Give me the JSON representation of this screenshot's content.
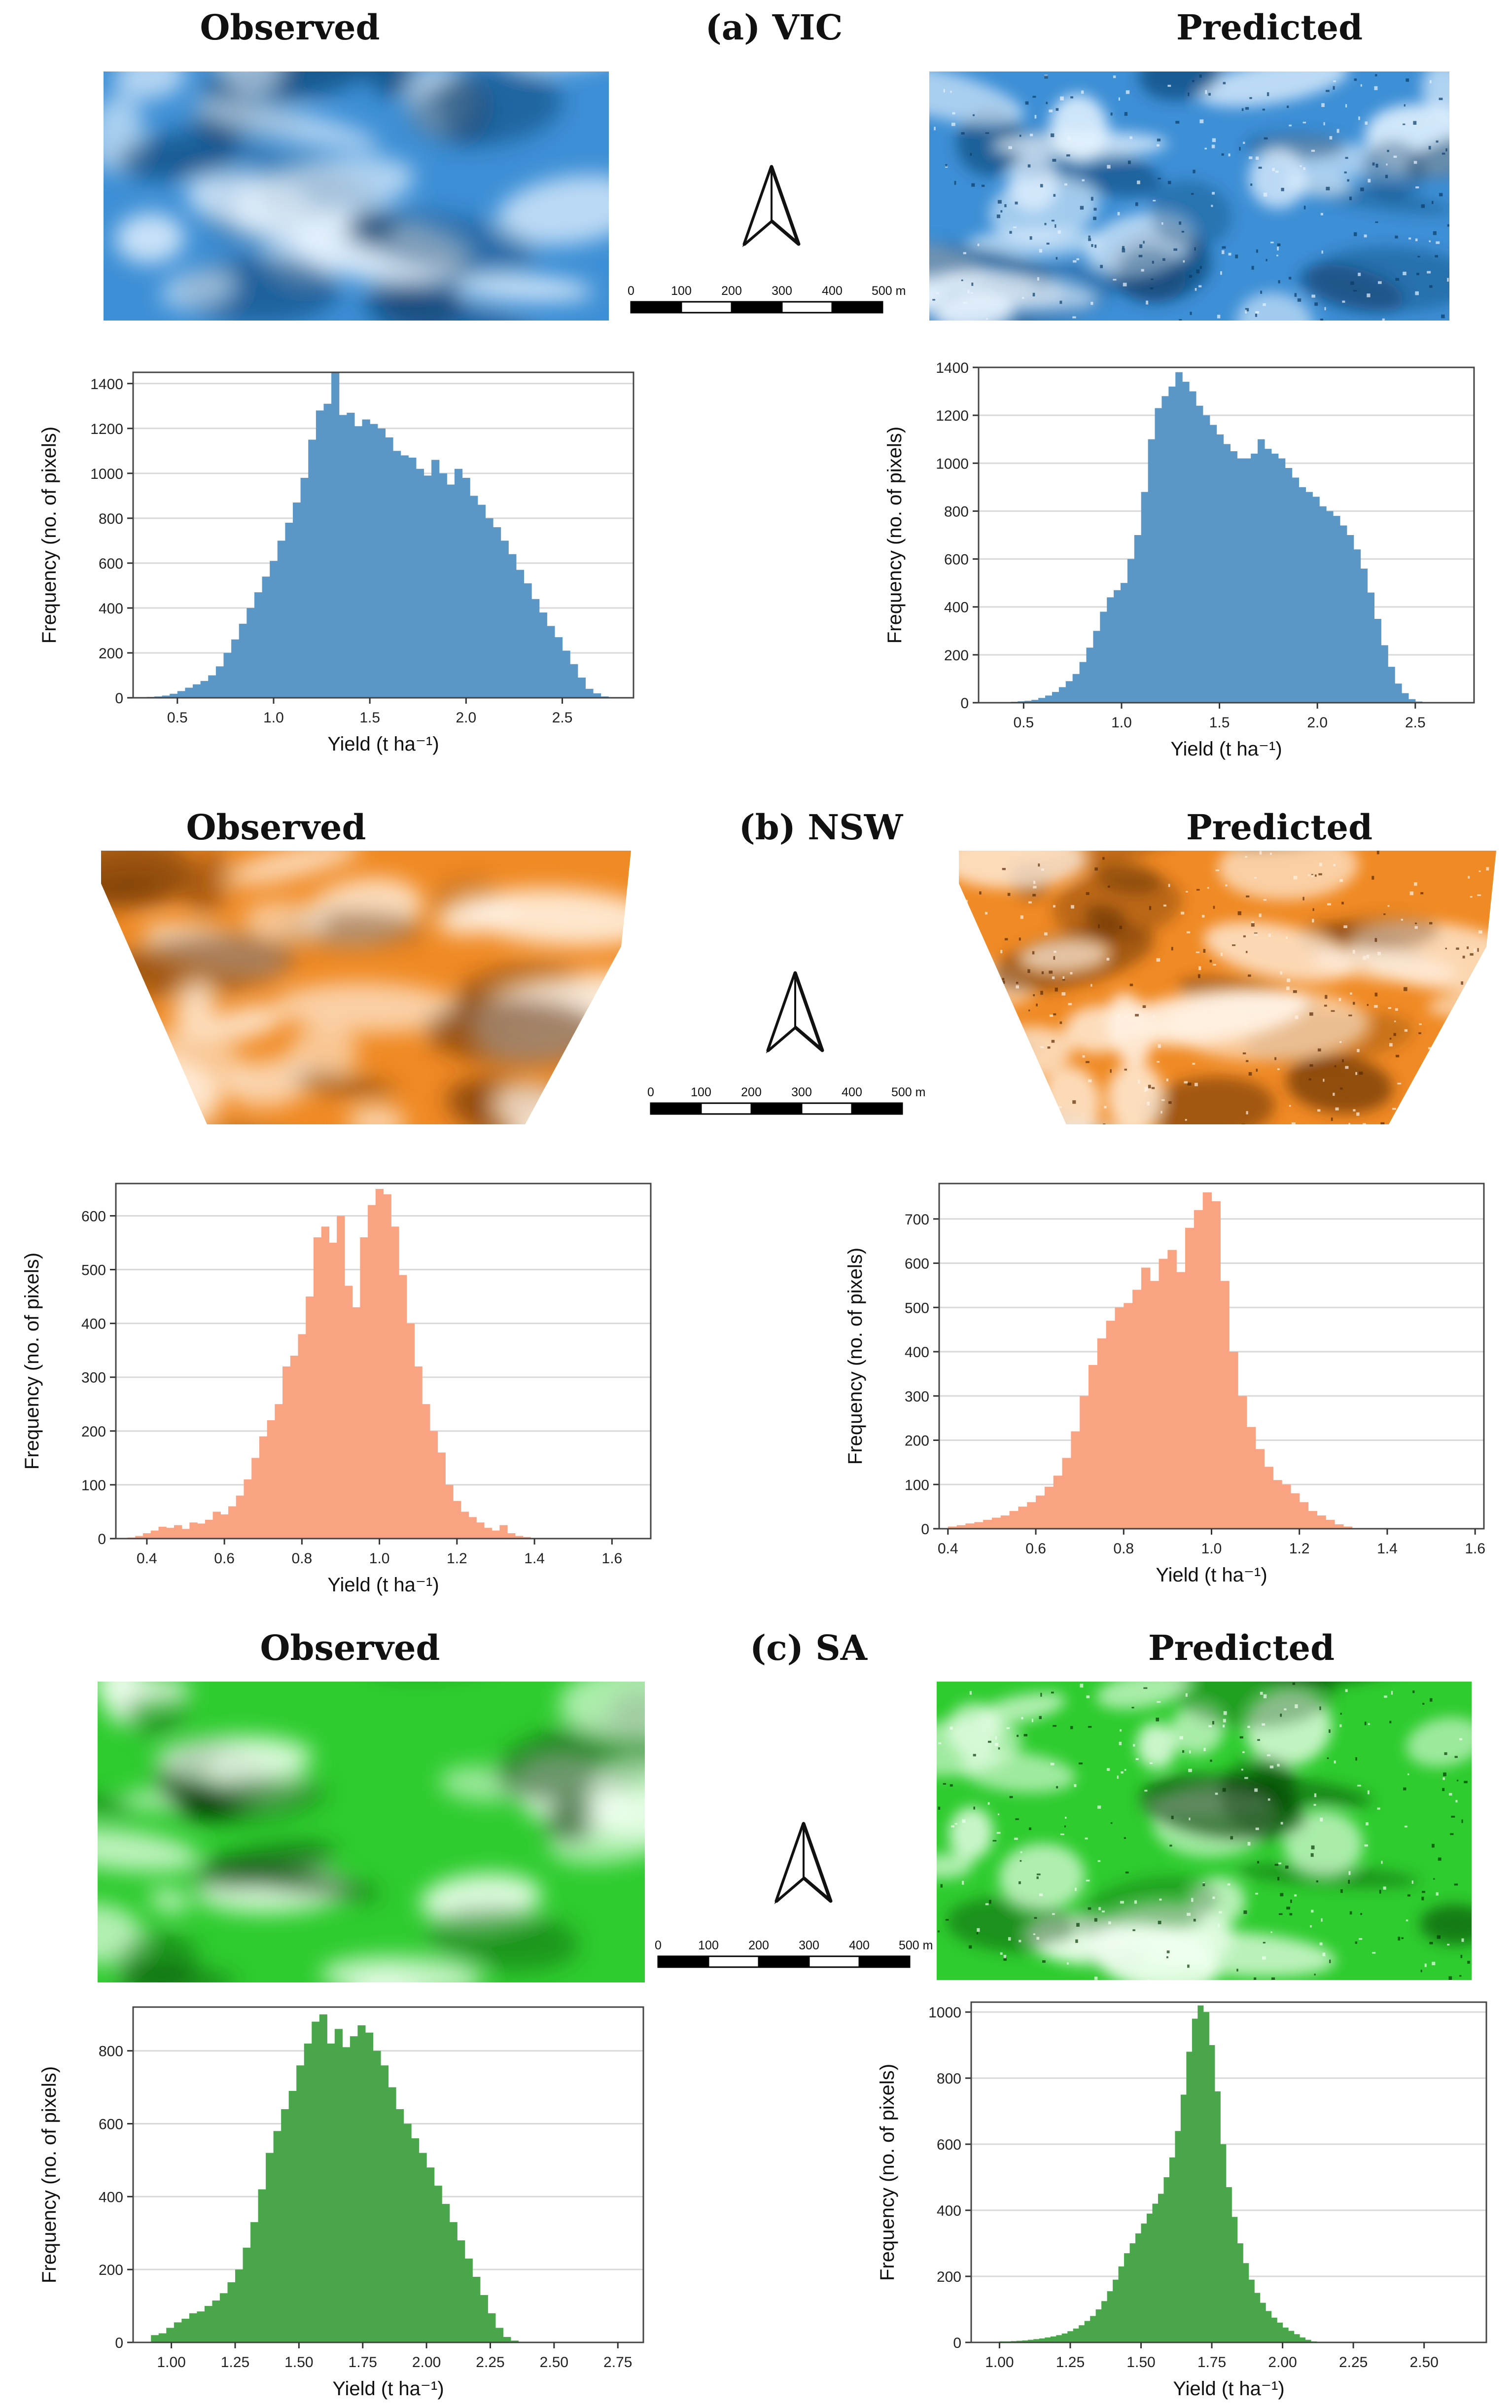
{
  "panels": [
    {
      "id": "vic",
      "label": "(a) VIC",
      "observed_title": "Observed",
      "predicted_title": "Predicted",
      "colors": {
        "map_base": "#3d8fd6",
        "map_light": "#e8f4ff",
        "map_dark": "#0a3a66",
        "bar": "#5b97c6"
      },
      "scale": {
        "ticks": [
          "0",
          "100",
          "200",
          "300",
          "400",
          "500 m"
        ]
      }
    },
    {
      "id": "nsw",
      "label": "(b) NSW",
      "observed_title": "Observed",
      "predicted_title": "Predicted",
      "colors": {
        "map_base": "#f08a24",
        "map_light": "#fff1e2",
        "map_dark": "#5a2a05",
        "bar": "#f9a382"
      },
      "scale": {
        "ticks": [
          "0",
          "100",
          "200",
          "300",
          "400",
          "500 m"
        ]
      }
    },
    {
      "id": "sa",
      "label": "(c) SA",
      "observed_title": "Observed",
      "predicted_title": "Predicted",
      "colors": {
        "map_base": "#2ecc2e",
        "map_light": "#f0fff0",
        "map_dark": "#063806",
        "bar": "#4aa64a"
      },
      "scale": {
        "ticks": [
          "0",
          "100",
          "200",
          "300",
          "400",
          "500 m"
        ]
      }
    }
  ],
  "chart_data": [
    {
      "type": "bar",
      "panel": "(a) VIC",
      "name": "Observed",
      "xlabel": "Yield (t ha⁻¹)",
      "ylabel": "Frequency (no. of pixels)",
      "xlim": [
        0.27,
        2.87
      ],
      "ylim": [
        0,
        1450
      ],
      "xticks": [
        0.5,
        1.0,
        1.5,
        2.0,
        2.5
      ],
      "xtick_labels": [
        "0.5",
        "1.0",
        "1.5",
        "2.0",
        "2.5"
      ],
      "yticks": [
        0,
        200,
        400,
        600,
        800,
        1000,
        1200,
        1400
      ],
      "ytick_labels": [
        "0",
        "200",
        "400",
        "600",
        "800",
        "1000",
        "1200",
        "1400"
      ],
      "bin_start": 0.3,
      "bin_width": 0.04,
      "values": [
        3,
        4,
        6,
        10,
        18,
        30,
        45,
        60,
        75,
        100,
        140,
        200,
        260,
        330,
        400,
        470,
        540,
        610,
        700,
        780,
        870,
        980,
        1150,
        1280,
        1310,
        1450,
        1260,
        1270,
        1210,
        1240,
        1220,
        1200,
        1160,
        1100,
        1080,
        1070,
        1020,
        990,
        1060,
        1000,
        950,
        1020,
        980,
        900,
        860,
        800,
        760,
        700,
        640,
        570,
        510,
        440,
        380,
        320,
        270,
        210,
        150,
        90,
        40,
        20,
        6
      ]
    },
    {
      "type": "bar",
      "panel": "(a) VIC",
      "name": "Predicted",
      "xlabel": "Yield (t ha⁻¹)",
      "ylabel": "Frequency (no. of pixels)",
      "xlim": [
        0.27,
        2.8
      ],
      "ylim": [
        0,
        1400
      ],
      "xticks": [
        0.5,
        1.0,
        1.5,
        2.0,
        2.5
      ],
      "xtick_labels": [
        "0.5",
        "1.0",
        "1.5",
        "2.0",
        "2.5"
      ],
      "yticks": [
        0,
        200,
        400,
        600,
        800,
        1000,
        1200,
        1400
      ],
      "ytick_labels": [
        "0",
        "200",
        "400",
        "600",
        "800",
        "1000",
        "1200",
        "1400"
      ],
      "bin_start": 0.4,
      "bin_width": 0.035,
      "values": [
        2,
        4,
        6,
        8,
        12,
        20,
        30,
        45,
        65,
        90,
        120,
        170,
        230,
        300,
        380,
        440,
        470,
        500,
        600,
        700,
        880,
        1100,
        1230,
        1280,
        1320,
        1380,
        1340,
        1300,
        1240,
        1200,
        1160,
        1120,
        1080,
        1050,
        1020,
        1020,
        1040,
        1100,
        1060,
        1040,
        1020,
        980,
        940,
        900,
        880,
        860,
        820,
        800,
        780,
        740,
        700,
        640,
        560,
        460,
        350,
        240,
        150,
        80,
        40,
        15,
        5,
        2
      ]
    },
    {
      "type": "bar",
      "panel": "(b) NSW",
      "name": "Observed",
      "xlabel": "Yield (t ha⁻¹)",
      "ylabel": "Frequency (no. of pixels)",
      "xlim": [
        0.32,
        1.7
      ],
      "ylim": [
        0,
        660
      ],
      "xticks": [
        0.4,
        0.6,
        0.8,
        1.0,
        1.2,
        1.4,
        1.6
      ],
      "xtick_labels": [
        "0.4",
        "0.6",
        "0.8",
        "1.0",
        "1.2",
        "1.4",
        "1.6"
      ],
      "yticks": [
        0,
        100,
        200,
        300,
        400,
        500,
        600
      ],
      "ytick_labels": [
        "0",
        "100",
        "200",
        "300",
        "400",
        "500",
        "600"
      ],
      "bin_start": 0.35,
      "bin_width": 0.02,
      "values": [
        2,
        5,
        10,
        15,
        22,
        20,
        25,
        18,
        30,
        28,
        35,
        50,
        45,
        60,
        80,
        110,
        150,
        190,
        220,
        250,
        320,
        340,
        380,
        450,
        560,
        580,
        550,
        600,
        470,
        430,
        560,
        620,
        650,
        640,
        580,
        490,
        400,
        320,
        250,
        200,
        160,
        100,
        70,
        50,
        40,
        30,
        20,
        15,
        25,
        10,
        5,
        3
      ]
    },
    {
      "type": "bar",
      "panel": "(b) NSW",
      "name": "Predicted",
      "xlabel": "Yield (t ha⁻¹)",
      "ylabel": "Frequency (no. of pixels)",
      "xlim": [
        0.38,
        1.62
      ],
      "ylim": [
        0,
        780
      ],
      "xticks": [
        0.4,
        0.6,
        0.8,
        1.0,
        1.2,
        1.4,
        1.6
      ],
      "xtick_labels": [
        "0.4",
        "0.6",
        "0.8",
        "1.0",
        "1.2",
        "1.4",
        "1.6"
      ],
      "yticks": [
        0,
        100,
        200,
        300,
        400,
        500,
        600,
        700
      ],
      "ytick_labels": [
        "0",
        "100",
        "200",
        "300",
        "400",
        "500",
        "600",
        "700"
      ],
      "bin_start": 0.4,
      "bin_width": 0.02,
      "values": [
        5,
        8,
        12,
        15,
        20,
        25,
        30,
        40,
        50,
        60,
        75,
        95,
        120,
        160,
        220,
        300,
        370,
        430,
        470,
        500,
        510,
        540,
        590,
        560,
        610,
        630,
        580,
        680,
        720,
        760,
        740,
        560,
        400,
        300,
        230,
        180,
        140,
        110,
        100,
        80,
        60,
        40,
        30,
        20,
        10,
        5
      ]
    },
    {
      "type": "bar",
      "panel": "(c) SA",
      "name": "Observed",
      "xlabel": "Yield (t ha⁻¹)",
      "ylabel": "Frequency (no. of pixels)",
      "xlim": [
        0.85,
        2.85
      ],
      "ylim": [
        0,
        920
      ],
      "xticks": [
        1.0,
        1.25,
        1.5,
        1.75,
        2.0,
        2.25,
        2.5,
        2.75
      ],
      "xtick_labels": [
        "1.00",
        "1.25",
        "1.50",
        "1.75",
        "2.00",
        "2.25",
        "2.50",
        "2.75"
      ],
      "yticks": [
        0,
        200,
        400,
        600,
        800
      ],
      "ytick_labels": [
        "0",
        "200",
        "400",
        "600",
        "800"
      ],
      "bin_start": 0.92,
      "bin_width": 0.03,
      "values": [
        20,
        25,
        40,
        55,
        65,
        80,
        85,
        100,
        115,
        135,
        165,
        200,
        260,
        330,
        420,
        520,
        580,
        640,
        690,
        760,
        820,
        880,
        900,
        820,
        860,
        810,
        840,
        870,
        850,
        800,
        760,
        700,
        640,
        600,
        560,
        520,
        480,
        430,
        380,
        330,
        280,
        230,
        180,
        130,
        80,
        40,
        15,
        5
      ]
    },
    {
      "type": "bar",
      "panel": "(c) SA",
      "name": "Predicted",
      "xlabel": "Yield (t ha⁻¹)",
      "ylabel": "Frequency (no. of pixels)",
      "xlim": [
        0.9,
        2.72
      ],
      "ylim": [
        0,
        1030
      ],
      "xticks": [
        1.0,
        1.25,
        1.5,
        1.75,
        2.0,
        2.25,
        2.5
      ],
      "xtick_labels": [
        "1.00",
        "1.25",
        "1.50",
        "1.75",
        "2.00",
        "2.25",
        "2.50"
      ],
      "yticks": [
        0,
        200,
        400,
        600,
        800,
        1000
      ],
      "ytick_labels": [
        "0",
        "200",
        "400",
        "600",
        "800",
        "1000"
      ],
      "bin_start": 1.0,
      "bin_width": 0.02,
      "values": [
        3,
        3,
        4,
        5,
        6,
        8,
        10,
        12,
        15,
        18,
        22,
        27,
        34,
        42,
        52,
        65,
        80,
        100,
        125,
        155,
        190,
        230,
        270,
        300,
        330,
        360,
        390,
        420,
        450,
        500,
        560,
        640,
        750,
        880,
        980,
        1020,
        1000,
        900,
        760,
        600,
        470,
        380,
        300,
        240,
        190,
        150,
        120,
        95,
        75,
        60,
        45,
        35,
        25,
        15,
        8,
        3
      ]
    }
  ]
}
